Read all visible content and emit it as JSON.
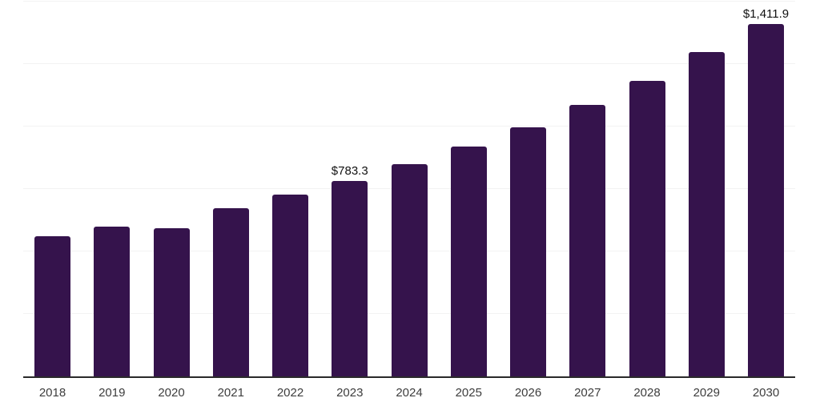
{
  "chart_data": {
    "type": "bar",
    "title": "",
    "xlabel": "",
    "ylabel": "",
    "categories": [
      "2018",
      "2019",
      "2020",
      "2021",
      "2022",
      "2023",
      "2024",
      "2025",
      "2026",
      "2027",
      "2028",
      "2029",
      "2030"
    ],
    "values": [
      562.3,
      600.7,
      594.3,
      674.1,
      728.5,
      783.3,
      849.9,
      920.2,
      996.8,
      1086.3,
      1182.2,
      1297.2,
      1411.9
    ],
    "annotated_points": [
      {
        "category": "2023",
        "label": "$783.3"
      },
      {
        "category": "2030",
        "label": "$1,411.9"
      }
    ],
    "ylim": [
      0,
      1500
    ],
    "gridline_interval": 250,
    "grid": true,
    "legend": false,
    "y_axis_labels_visible": false,
    "colors": {
      "bar": "#35134c",
      "gridline": "#f2f2f2",
      "axis": "#2a2a2a",
      "tick_label": "#3d3d3d",
      "data_label": "#111111",
      "background": "#ffffff"
    }
  }
}
